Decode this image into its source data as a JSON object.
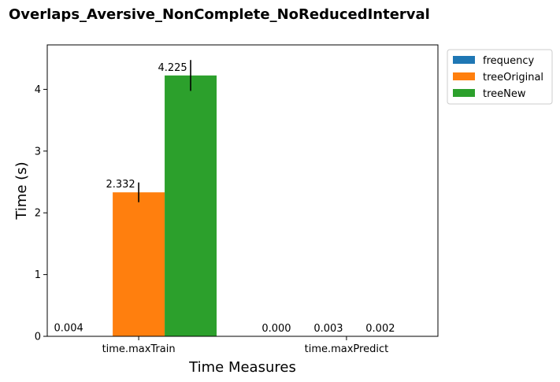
{
  "chart_data": {
    "type": "bar",
    "title": "Overlaps_Aversive_NonComplete_NoReducedInterval",
    "xlabel": "Time Measures",
    "ylabel": "Time (s)",
    "categories": [
      "time.maxTrain",
      "time.maxPredict"
    ],
    "ylim": [
      0,
      4.72
    ],
    "yticks": [
      "0",
      "1",
      "2",
      "3",
      "4"
    ],
    "grid": false,
    "legend_placement": "outside top-right",
    "series": [
      {
        "name": "frequency",
        "color": "#1f77b4",
        "values": [
          0.004,
          0.0
        ],
        "labels": [
          "0.004",
          "0.000"
        ],
        "errors": [
          0.0,
          0.0
        ]
      },
      {
        "name": "treeOriginal",
        "color": "#ff7f0e",
        "values": [
          2.332,
          0.003
        ],
        "labels": [
          "2.332",
          "0.003"
        ],
        "errors": [
          0.16,
          0.0
        ]
      },
      {
        "name": "treeNew",
        "color": "#2ca02c",
        "values": [
          4.225,
          0.002
        ],
        "labels": [
          "4.225",
          "0.002"
        ],
        "errors": [
          0.25,
          0.0
        ]
      }
    ]
  }
}
